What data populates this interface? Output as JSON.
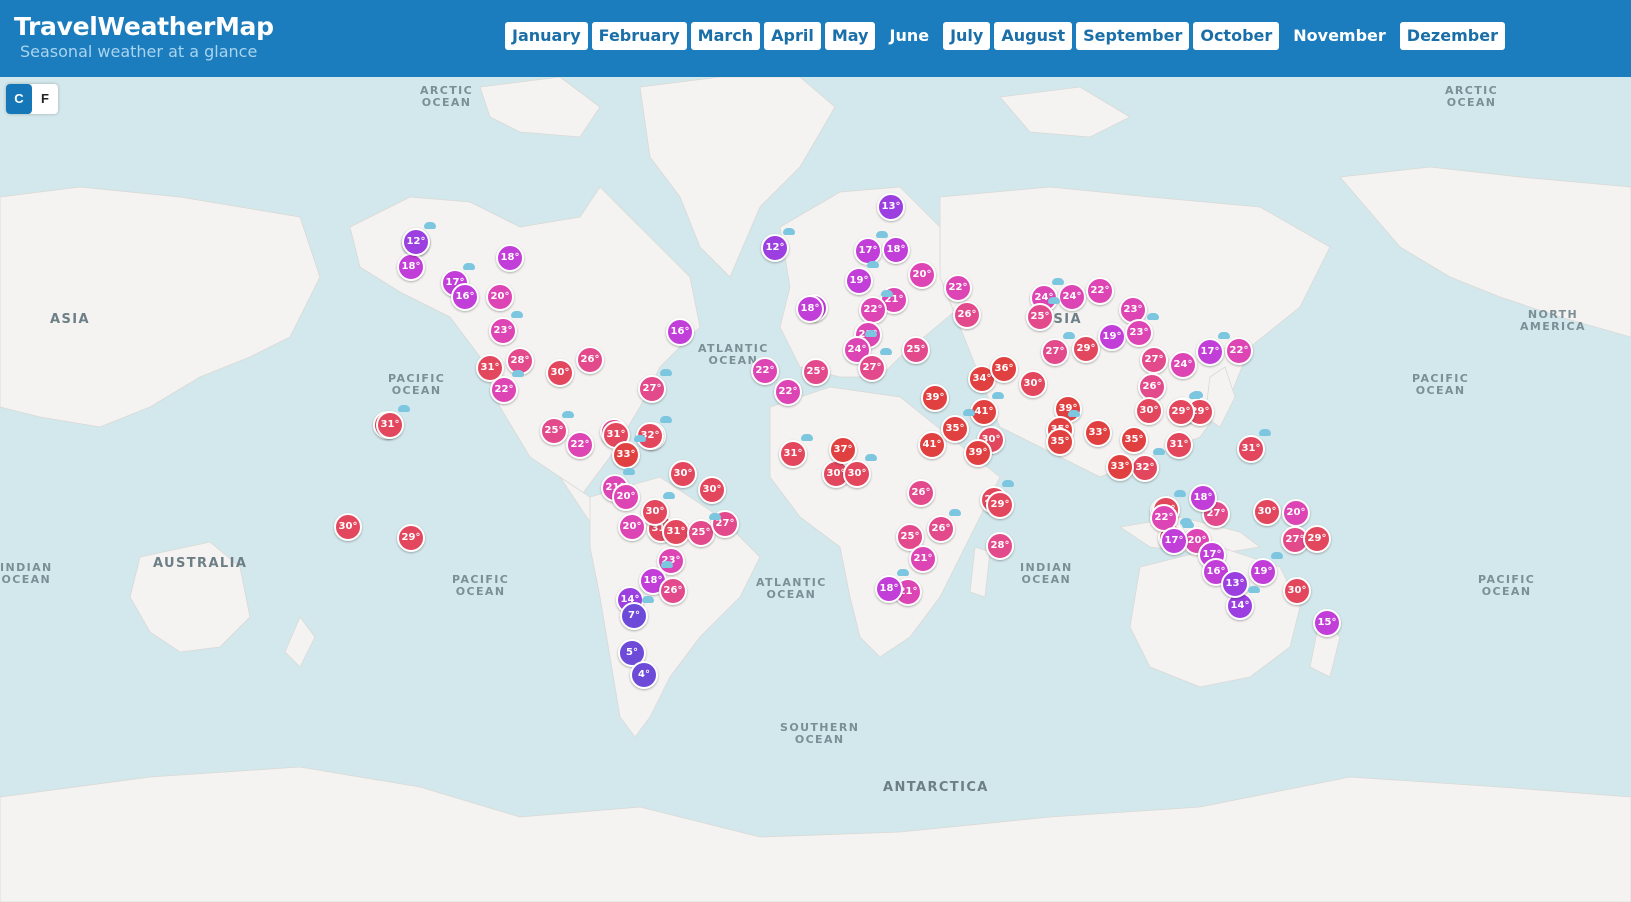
{
  "header": {
    "title": "TravelWeatherMap",
    "subtitle": "Seasonal weather at a glance",
    "months": [
      "January",
      "February",
      "March",
      "April",
      "May",
      "June",
      "July",
      "August",
      "September",
      "October",
      "November",
      "Dezember"
    ],
    "selected_months": [
      "June",
      "November"
    ]
  },
  "units": {
    "celsius": "C",
    "fahrenheit": "F",
    "active": "C"
  },
  "map_labels": {
    "arctic_ocean": "ARCTIC\nOCEAN",
    "arctic_ocean_east": "ARCTIC\nOCEAN",
    "asia_west": "ASIA",
    "pacific_ocean_north": "PACIFIC\nOCEAN",
    "atlantic_ocean_north": "ATLANTIC\nOCEAN",
    "asia": "ASIA",
    "north_america_east": "NORTH\nAMERICA",
    "pacific_ocean_northeast": "PACIFIC\nOCEAN",
    "indian_ocean_west": "INDIAN\nOCEAN",
    "australia": "AUSTRALIA",
    "pacific_ocean_south": "PACIFIC\nOCEAN",
    "atlantic_ocean_south": "ATLANTIC\nOCEAN",
    "indian_ocean": "INDIAN\nOCEAN",
    "pacific_ocean_southeast": "PACIFIC\nOCEAN",
    "southern_ocean": "SOUTHERN\nOCEAN",
    "antarctica": "ANTARCTICA"
  },
  "colors": {
    "header": "#1b7dbd",
    "water": "#d3e8ec",
    "land": "#f4f3f1",
    "rain_icon": "#7cc6e0",
    "temp_scale": [
      "#6d4bd8",
      "#9b3fe0",
      "#c23ed8",
      "#de45b4",
      "#e24a8c",
      "#e2475e",
      "#e04040"
    ]
  },
  "temperatures": [
    "22°",
    "18°",
    "18°",
    "17°",
    "16°",
    "20°",
    "23°",
    "28°",
    "31°",
    "22°",
    "30°",
    "26°",
    "25°",
    "22°",
    "16°",
    "27°",
    "31°",
    "25°",
    "25°",
    "31°",
    "32°",
    "33°",
    "30°",
    "30°",
    "21°",
    "20°",
    "31°",
    "30°",
    "20°",
    "31°",
    "25°",
    "27°",
    "23°",
    "18°",
    "26°",
    "14°",
    "7°",
    "5°",
    "4°",
    "31°",
    "30°",
    "29°",
    "12°",
    "22°",
    "13°",
    "17°",
    "18°",
    "18°",
    "19°",
    "20°",
    "21°",
    "22°",
    "23°",
    "18°",
    "24°",
    "25°",
    "26°",
    "27°",
    "25°",
    "22°",
    "31°",
    "30°",
    "37°",
    "30°",
    "26°",
    "21°",
    "18°",
    "41°",
    "39°",
    "35°",
    "30°",
    "34°",
    "41°",
    "36°",
    "39°",
    "29°",
    "25°",
    "21°",
    "26°",
    "28°",
    "29°",
    "27°",
    "29°",
    "22°",
    "24°",
    "24°",
    "22°",
    "25°",
    "23°",
    "19°",
    "23°",
    "30°",
    "39°",
    "35°",
    "35°",
    "33°",
    "32°",
    "27°",
    "24°",
    "17°",
    "22°",
    "26°",
    "29°",
    "30°",
    "29°",
    "29°",
    "33°",
    "32°",
    "31°",
    "35°",
    "31°",
    "31°",
    "30°",
    "27°",
    "29°",
    "20°",
    "17°",
    "19°",
    "18°",
    "16°",
    "14°",
    "13°",
    "22°",
    "17°",
    "20°",
    "27°",
    "29°",
    "30°",
    "15°",
    "12°"
  ],
  "rain_icon_count": 42
}
